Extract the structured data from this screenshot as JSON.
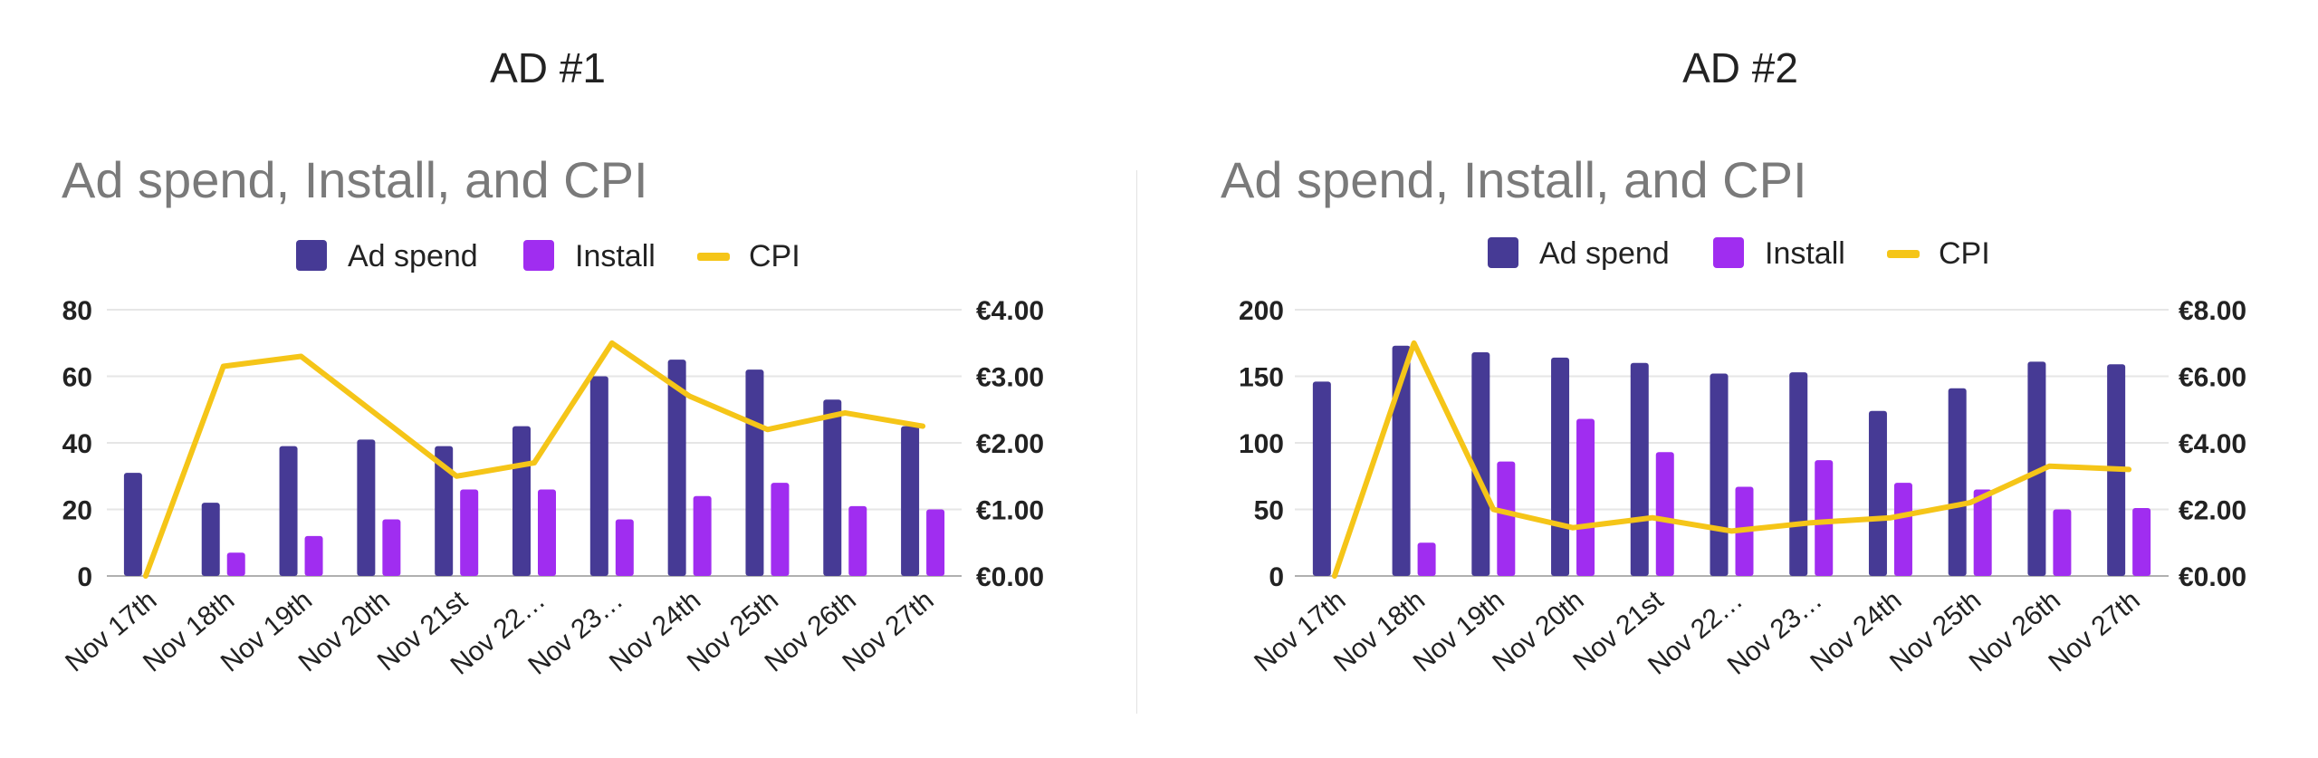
{
  "headings": [
    "AD #1",
    "AD #2"
  ],
  "colors": {
    "ad_spend": "#463a95",
    "install": "#a02df0",
    "cpi": "#f5c518"
  },
  "chart_data": [
    {
      "type": "bar",
      "title": "Ad spend, Install, and CPI",
      "categories": [
        "Nov 17th",
        "Nov 18th",
        "Nov 19th",
        "Nov 20th",
        "Nov 21st",
        "Nov 22…",
        "Nov 23…",
        "Nov 24th",
        "Nov 25th",
        "Nov 26th",
        "Nov 27th"
      ],
      "series": [
        {
          "name": "Ad spend",
          "kind": "bar",
          "axis": "left",
          "values": [
            31,
            22,
            39,
            41,
            39,
            45,
            60,
            65,
            62,
            53,
            45
          ]
        },
        {
          "name": "Install",
          "kind": "bar",
          "axis": "left",
          "values": [
            0,
            7,
            12,
            17,
            26,
            26,
            17,
            24,
            28,
            21,
            20
          ]
        },
        {
          "name": "CPI",
          "kind": "line",
          "axis": "right",
          "values": [
            0,
            3.15,
            3.3,
            2.4,
            1.5,
            1.7,
            3.5,
            2.7,
            2.2,
            2.45,
            2.25
          ]
        }
      ],
      "y_left": {
        "min": 0,
        "max": 80,
        "ticks": [
          "0",
          "20",
          "40",
          "60",
          "80"
        ]
      },
      "y_right": {
        "min": 0,
        "max": 4,
        "ticks": [
          "€0.00",
          "€1.00",
          "€2.00",
          "€3.00",
          "€4.00"
        ]
      },
      "legend": "top-center",
      "grid": true
    },
    {
      "type": "bar",
      "title": "Ad spend, Install, and CPI",
      "categories": [
        "Nov 17th",
        "Nov 18th",
        "Nov 19th",
        "Nov 20th",
        "Nov 21st",
        "Nov 22…",
        "Nov 23…",
        "Nov 24th",
        "Nov 25th",
        "Nov 26th",
        "Nov 27th"
      ],
      "series": [
        {
          "name": "Ad spend",
          "kind": "bar",
          "axis": "left",
          "values": [
            146,
            173,
            168,
            164,
            160,
            152,
            153,
            124,
            141,
            161,
            159
          ]
        },
        {
          "name": "Install",
          "kind": "bar",
          "axis": "left",
          "values": [
            0,
            25,
            86,
            118,
            93,
            67,
            87,
            70,
            65,
            50,
            51
          ]
        },
        {
          "name": "CPI",
          "kind": "line",
          "axis": "right",
          "values": [
            0,
            7.0,
            2.0,
            1.45,
            1.75,
            1.35,
            1.6,
            1.75,
            2.2,
            3.3,
            3.2
          ]
        }
      ],
      "y_left": {
        "min": 0,
        "max": 200,
        "ticks": [
          "0",
          "50",
          "100",
          "150",
          "200"
        ]
      },
      "y_right": {
        "min": 0,
        "max": 8,
        "ticks": [
          "€0.00",
          "€2.00",
          "€4.00",
          "€6.00",
          "€8.00"
        ]
      },
      "legend": "top-center",
      "grid": true
    }
  ]
}
